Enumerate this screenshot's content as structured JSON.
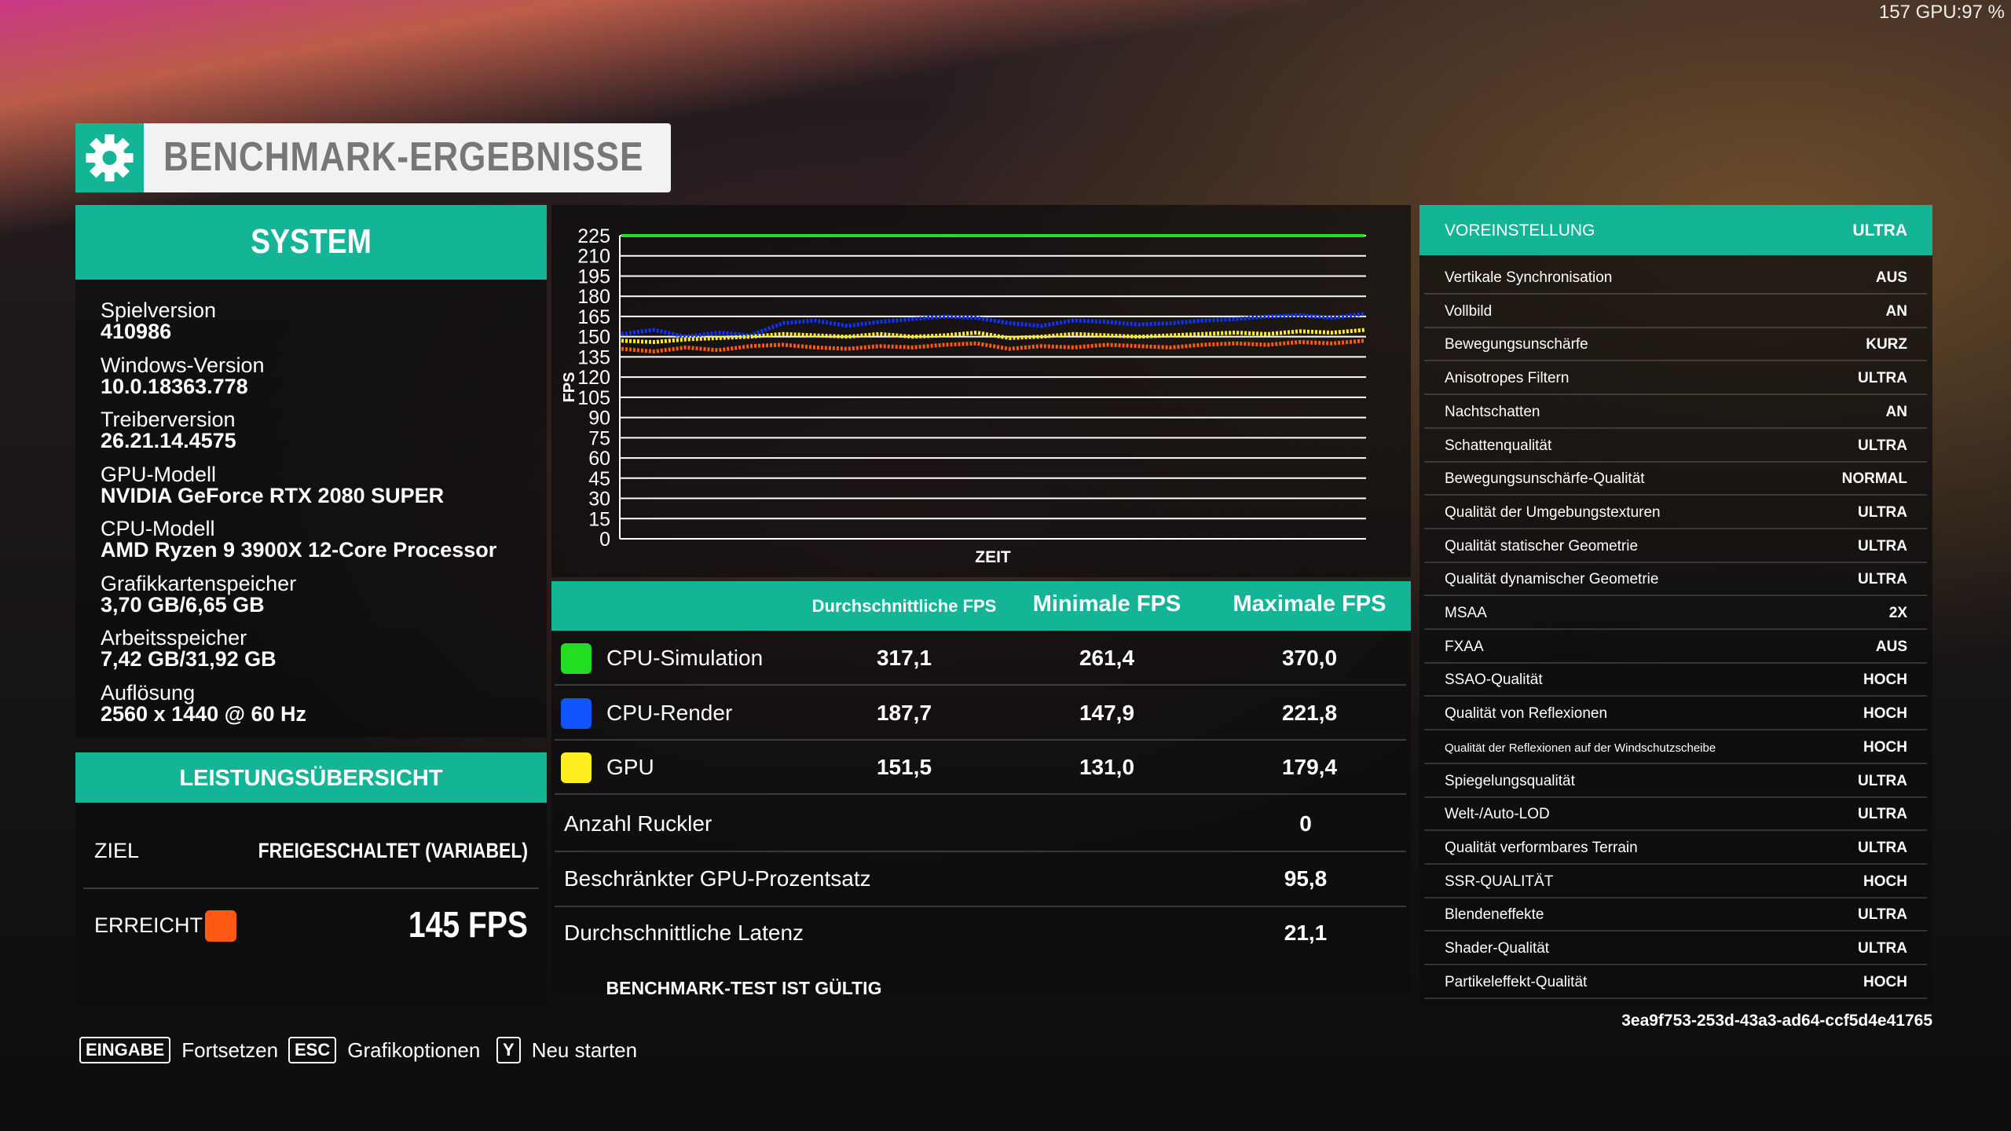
{
  "overlay": "157 GPU:97 %",
  "header": {
    "title": "BENCHMARK-ERGEBNISSE"
  },
  "system": {
    "title": "SYSTEM",
    "items": [
      {
        "label": "Spielversion",
        "value": "410986"
      },
      {
        "label": "Windows-Version",
        "value": "10.0.18363.778"
      },
      {
        "label": "Treiberversion",
        "value": "26.21.14.4575"
      },
      {
        "label": "GPU-Modell",
        "value": "NVIDIA GeForce RTX 2080 SUPER"
      },
      {
        "label": "CPU-Modell",
        "value": "AMD Ryzen 9 3900X 12-Core Processor"
      },
      {
        "label": "Grafikkartenspeicher",
        "value": "3,70 GB/6,65 GB"
      },
      {
        "label": "Arbeitsspeicher",
        "value": "7,42 GB/31,92 GB"
      },
      {
        "label": "Auflösung",
        "value": "2560 x 1440 @ 60 Hz"
      }
    ]
  },
  "performance": {
    "title": "LEISTUNGSÜBERSICHT",
    "target_label": "ZIEL",
    "target_value": "FREIGESCHALTET (VARIABEL)",
    "achieved_label": "ERREICHT",
    "achieved_color": "#ff5a14",
    "achieved_value": "145 FPS"
  },
  "chart_data": {
    "type": "line",
    "x_label": "ZEIT",
    "y_label": "FPS",
    "ylim": [
      0,
      225
    ],
    "yticks": [
      0,
      15,
      30,
      45,
      60,
      75,
      90,
      105,
      120,
      135,
      150,
      165,
      180,
      195,
      210,
      225
    ],
    "grid": true,
    "series": [
      {
        "color": "#22dd22",
        "values": [
          225,
          225
        ]
      },
      {
        "color": "#1133ff",
        "values": [
          152,
          155,
          150,
          153,
          151,
          160,
          162,
          158,
          161,
          163,
          165,
          164,
          160,
          158,
          162,
          161,
          159,
          160,
          162,
          163,
          165,
          166,
          164,
          167
        ]
      },
      {
        "color": "#ffee22",
        "values": [
          147,
          146,
          148,
          149,
          150,
          152,
          151,
          150,
          152,
          150,
          151,
          153,
          149,
          150,
          152,
          151,
          150,
          151,
          152,
          153,
          152,
          154,
          153,
          155
        ]
      },
      {
        "color": "#ff5a14",
        "values": [
          141,
          139,
          142,
          140,
          143,
          144,
          142,
          141,
          143,
          142,
          144,
          145,
          141,
          143,
          142,
          144,
          143,
          142,
          144,
          145,
          144,
          146,
          145,
          147
        ]
      }
    ]
  },
  "table": {
    "headers": [
      "Durchschnittliche FPS",
      "Minimale FPS",
      "Maximale FPS"
    ],
    "rows": [
      {
        "name": "CPU-Simulation",
        "color": "#22dd22",
        "values": [
          "317,1",
          "261,4",
          "370,0"
        ]
      },
      {
        "name": "CPU-Render",
        "color": "#1155ff",
        "values": [
          "187,7",
          "147,9",
          "221,8"
        ]
      },
      {
        "name": "GPU",
        "color": "#ffee22",
        "values": [
          "151,5",
          "131,0",
          "179,4"
        ]
      }
    ]
  },
  "stats": [
    {
      "label": "Anzahl Ruckler",
      "value": "0"
    },
    {
      "label": "Beschränkter GPU-Prozentsatz",
      "value": "95,8"
    },
    {
      "label": "Durchschnittliche Latenz",
      "value": "21,1"
    }
  ],
  "validity": "BENCHMARK-TEST IST GÜLTIG",
  "settings": {
    "header": {
      "label": "VOREINSTELLUNG",
      "value": "ULTRA"
    },
    "rows": [
      {
        "label": "Vertikale Synchronisation",
        "value": "AUS"
      },
      {
        "label": "Vollbild",
        "value": "AN"
      },
      {
        "label": "Bewegungsunschärfe",
        "value": "KURZ"
      },
      {
        "label": "Anisotropes Filtern",
        "value": "ULTRA"
      },
      {
        "label": "Nachtschatten",
        "value": "AN"
      },
      {
        "label": "Schattenqualität",
        "value": "ULTRA"
      },
      {
        "label": "Bewegungsunschärfe-Qualität",
        "value": "NORMAL"
      },
      {
        "label": "Qualität der Umgebungstexturen",
        "value": "ULTRA"
      },
      {
        "label": "Qualität statischer Geometrie",
        "value": "ULTRA"
      },
      {
        "label": "Qualität dynamischer Geometrie",
        "value": "ULTRA"
      },
      {
        "label": "MSAA",
        "value": "2X"
      },
      {
        "label": "FXAA",
        "value": "AUS"
      },
      {
        "label": "SSAO-Qualität",
        "value": "HOCH"
      },
      {
        "label": "Qualität von Reflexionen",
        "value": "HOCH"
      },
      {
        "label": "Qualität der Reflexionen auf der Windschutzscheibe",
        "value": "HOCH"
      },
      {
        "label": "Spiegelungsqualität",
        "value": "ULTRA"
      },
      {
        "label": "Welt-/Auto-LOD",
        "value": "ULTRA"
      },
      {
        "label": "Qualität verformbares Terrain",
        "value": "ULTRA"
      },
      {
        "label": "SSR-QUALITÄT",
        "value": "HOCH"
      },
      {
        "label": "Blendeneffekte",
        "value": "ULTRA"
      },
      {
        "label": "Shader-Qualität",
        "value": "ULTRA"
      },
      {
        "label": "Partikeleffekt-Qualität",
        "value": "HOCH"
      }
    ],
    "id": "3ea9f753-253d-43a3-ad64-ccf5d4e41765"
  },
  "footer": {
    "buttons": [
      {
        "key": "EINGABE",
        "label": "Fortsetzen"
      },
      {
        "key": "ESC",
        "label": "Grafikoptionen"
      },
      {
        "key": "Y",
        "label": "Neu starten"
      }
    ]
  }
}
